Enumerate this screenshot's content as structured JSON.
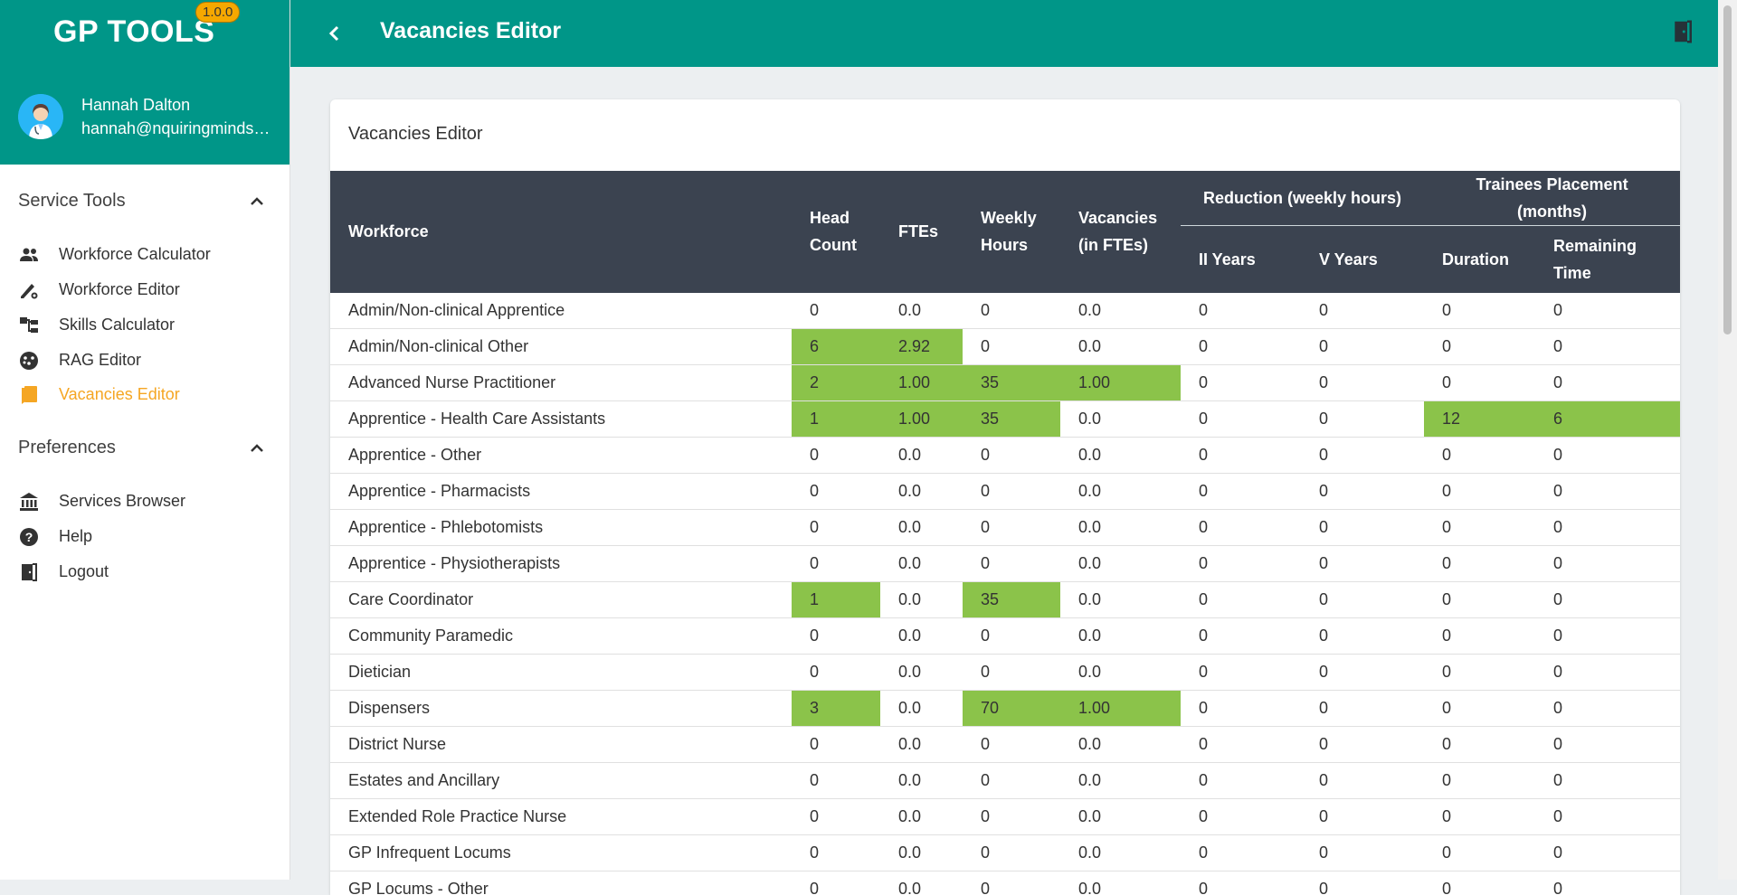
{
  "app": {
    "title": "GP TOOLS",
    "version": "1.0.0"
  },
  "user": {
    "name": "Hannah Dalton",
    "email": "hannah@nquiringminds.com"
  },
  "sidebar": {
    "service_tools": {
      "label": "Service Tools",
      "items": [
        {
          "label": "Workforce Calculator",
          "icon": "people-icon"
        },
        {
          "label": "Workforce Editor",
          "icon": "edit-settings-icon"
        },
        {
          "label": "Skills Calculator",
          "icon": "tree-structure-icon"
        },
        {
          "label": "RAG Editor",
          "icon": "palette-icon"
        },
        {
          "label": "Vacancies Editor",
          "icon": "bookmark-icon"
        }
      ]
    },
    "preferences": {
      "label": "Preferences",
      "items": [
        {
          "label": "Services Browser",
          "icon": "bank-icon"
        },
        {
          "label": "Help",
          "icon": "help-icon"
        },
        {
          "label": "Logout",
          "icon": "exit-door-icon"
        }
      ]
    }
  },
  "topbar": {
    "title": "Vacancies Editor"
  },
  "card": {
    "title": "Vacancies Editor"
  },
  "table": {
    "headers": {
      "workforce": "Workforce",
      "head_count_1": "Head",
      "head_count_2": "Count",
      "ftes": "FTEs",
      "weekly_hours_1": "Weekly",
      "weekly_hours_2": "Hours",
      "vacancies_1": "Vacancies",
      "vacancies_2": "(in FTEs)",
      "reduction_group": "Reduction (weekly hours)",
      "ii_years": "II Years",
      "v_years": "V Years",
      "trainees_group": "Trainees Placement (months)",
      "duration": "Duration",
      "remaining_1": "Remaining",
      "remaining_2": "Time"
    },
    "rows": [
      {
        "workforce": "Admin/Non-clinical Apprentice",
        "head_count": "0",
        "ftes": "0.0",
        "weekly_hours": "0",
        "vacancies": "0.0",
        "ii_years": "0",
        "v_years": "0",
        "duration": "0",
        "remaining": "0",
        "highlight": []
      },
      {
        "workforce": "Admin/Non-clinical Other",
        "head_count": "6",
        "ftes": "2.92",
        "weekly_hours": "0",
        "vacancies": "0.0",
        "ii_years": "0",
        "v_years": "0",
        "duration": "0",
        "remaining": "0",
        "highlight": [
          "head_count",
          "ftes"
        ]
      },
      {
        "workforce": "Advanced Nurse Practitioner",
        "head_count": "2",
        "ftes": "1.00",
        "weekly_hours": "35",
        "vacancies": "1.00",
        "ii_years": "0",
        "v_years": "0",
        "duration": "0",
        "remaining": "0",
        "highlight": [
          "head_count",
          "ftes",
          "weekly_hours",
          "vacancies"
        ]
      },
      {
        "workforce": "Apprentice - Health Care Assistants",
        "head_count": "1",
        "ftes": "1.00",
        "weekly_hours": "35",
        "vacancies": "0.0",
        "ii_years": "0",
        "v_years": "0",
        "duration": "12",
        "remaining": "6",
        "highlight": [
          "head_count",
          "ftes",
          "weekly_hours",
          "duration",
          "remaining"
        ]
      },
      {
        "workforce": "Apprentice - Other",
        "head_count": "0",
        "ftes": "0.0",
        "weekly_hours": "0",
        "vacancies": "0.0",
        "ii_years": "0",
        "v_years": "0",
        "duration": "0",
        "remaining": "0",
        "highlight": []
      },
      {
        "workforce": "Apprentice - Pharmacists",
        "head_count": "0",
        "ftes": "0.0",
        "weekly_hours": "0",
        "vacancies": "0.0",
        "ii_years": "0",
        "v_years": "0",
        "duration": "0",
        "remaining": "0",
        "highlight": []
      },
      {
        "workforce": "Apprentice - Phlebotomists",
        "head_count": "0",
        "ftes": "0.0",
        "weekly_hours": "0",
        "vacancies": "0.0",
        "ii_years": "0",
        "v_years": "0",
        "duration": "0",
        "remaining": "0",
        "highlight": []
      },
      {
        "workforce": "Apprentice - Physiotherapists",
        "head_count": "0",
        "ftes": "0.0",
        "weekly_hours": "0",
        "vacancies": "0.0",
        "ii_years": "0",
        "v_years": "0",
        "duration": "0",
        "remaining": "0",
        "highlight": []
      },
      {
        "workforce": "Care Coordinator",
        "head_count": "1",
        "ftes": "0.0",
        "weekly_hours": "35",
        "vacancies": "0.0",
        "ii_years": "0",
        "v_years": "0",
        "duration": "0",
        "remaining": "0",
        "highlight": [
          "head_count",
          "weekly_hours"
        ]
      },
      {
        "workforce": "Community Paramedic",
        "head_count": "0",
        "ftes": "0.0",
        "weekly_hours": "0",
        "vacancies": "0.0",
        "ii_years": "0",
        "v_years": "0",
        "duration": "0",
        "remaining": "0",
        "highlight": []
      },
      {
        "workforce": "Dietician",
        "head_count": "0",
        "ftes": "0.0",
        "weekly_hours": "0",
        "vacancies": "0.0",
        "ii_years": "0",
        "v_years": "0",
        "duration": "0",
        "remaining": "0",
        "highlight": []
      },
      {
        "workforce": "Dispensers",
        "head_count": "3",
        "ftes": "0.0",
        "weekly_hours": "70",
        "vacancies": "1.00",
        "ii_years": "0",
        "v_years": "0",
        "duration": "0",
        "remaining": "0",
        "highlight": [
          "head_count",
          "weekly_hours",
          "vacancies"
        ]
      },
      {
        "workforce": "District Nurse",
        "head_count": "0",
        "ftes": "0.0",
        "weekly_hours": "0",
        "vacancies": "0.0",
        "ii_years": "0",
        "v_years": "0",
        "duration": "0",
        "remaining": "0",
        "highlight": []
      },
      {
        "workforce": "Estates and Ancillary",
        "head_count": "0",
        "ftes": "0.0",
        "weekly_hours": "0",
        "vacancies": "0.0",
        "ii_years": "0",
        "v_years": "0",
        "duration": "0",
        "remaining": "0",
        "highlight": []
      },
      {
        "workforce": "Extended Role Practice Nurse",
        "head_count": "0",
        "ftes": "0.0",
        "weekly_hours": "0",
        "vacancies": "0.0",
        "ii_years": "0",
        "v_years": "0",
        "duration": "0",
        "remaining": "0",
        "highlight": []
      },
      {
        "workforce": "GP Infrequent Locums",
        "head_count": "0",
        "ftes": "0.0",
        "weekly_hours": "0",
        "vacancies": "0.0",
        "ii_years": "0",
        "v_years": "0",
        "duration": "0",
        "remaining": "0",
        "highlight": []
      },
      {
        "workforce": "GP Locums - Other",
        "head_count": "0",
        "ftes": "0.0",
        "weekly_hours": "0",
        "vacancies": "0.0",
        "ii_years": "0",
        "v_years": "0",
        "duration": "0",
        "remaining": "0",
        "highlight": []
      }
    ]
  },
  "colors": {
    "primary": "#009688",
    "accent": "#f5a623",
    "header_bg": "#3b4350",
    "highlight": "#8bc34a"
  }
}
